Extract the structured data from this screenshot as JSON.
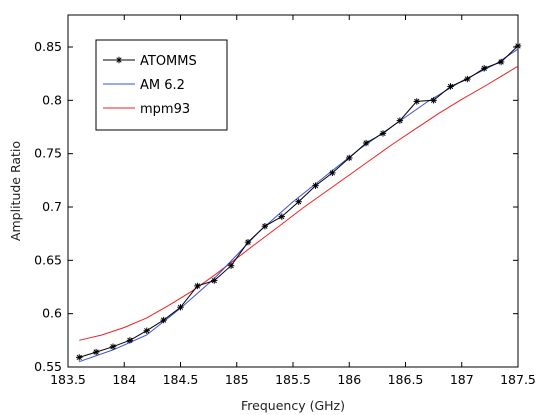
{
  "chart_data": {
    "type": "line",
    "xlabel": "Frequency (GHz)",
    "ylabel": "Amplitude Ratio",
    "xlim": [
      183.5,
      187.5
    ],
    "ylim": [
      0.55,
      0.88
    ],
    "x_ticks": [
      183.5,
      184,
      184.5,
      185,
      185.5,
      186,
      186.5,
      187,
      187.5
    ],
    "x_tick_labels": [
      "183.5",
      "184",
      "184.5",
      "185",
      "185.5",
      "186",
      "186.5",
      "187",
      "187.5"
    ],
    "y_ticks": [
      0.55,
      0.6,
      0.65,
      0.7,
      0.75,
      0.8,
      0.85
    ],
    "y_tick_labels": [
      "0.55",
      "0.6",
      "0.65",
      "0.7",
      "0.75",
      "0.8",
      "0.85"
    ],
    "grid": false,
    "legend_position": "top-left",
    "series": [
      {
        "name": "ATOMMS",
        "color": "#000000",
        "marker": "asterisk",
        "x": [
          183.6,
          183.75,
          183.9,
          184.05,
          184.2,
          184.35,
          184.5,
          184.65,
          184.8,
          184.95,
          185.1,
          185.25,
          185.4,
          185.55,
          185.7,
          185.85,
          186.0,
          186.15,
          186.3,
          186.45,
          186.6,
          186.75,
          186.9,
          187.05,
          187.2,
          187.35,
          187.5
        ],
        "y": [
          0.559,
          0.564,
          0.569,
          0.575,
          0.584,
          0.594,
          0.606,
          0.626,
          0.631,
          0.645,
          0.667,
          0.682,
          0.691,
          0.705,
          0.72,
          0.732,
          0.746,
          0.76,
          0.769,
          0.781,
          0.799,
          0.8,
          0.813,
          0.82,
          0.83,
          0.836,
          0.851
        ]
      },
      {
        "name": "AM 6.2",
        "color": "#3a4fd8",
        "x": [
          183.6,
          183.9,
          184.2,
          184.5,
          184.8,
          185.0,
          185.2,
          185.5,
          185.8,
          186.1,
          186.4,
          186.7,
          187.0,
          187.3,
          187.5
        ],
        "y": [
          0.555,
          0.566,
          0.58,
          0.605,
          0.633,
          0.655,
          0.677,
          0.705,
          0.73,
          0.755,
          0.777,
          0.799,
          0.818,
          0.834,
          0.848
        ]
      },
      {
        "name": "mpm93",
        "color": "#f02020",
        "x": [
          183.6,
          183.8,
          184.0,
          184.2,
          184.4,
          184.6,
          184.8,
          185.0,
          185.2,
          185.4,
          185.6,
          185.8,
          186.0,
          186.2,
          186.4,
          186.6,
          186.8,
          187.0,
          187.2,
          187.5
        ],
        "y": [
          0.575,
          0.58,
          0.587,
          0.596,
          0.608,
          0.621,
          0.636,
          0.652,
          0.668,
          0.684,
          0.7,
          0.715,
          0.73,
          0.745,
          0.76,
          0.774,
          0.788,
          0.801,
          0.813,
          0.832
        ]
      }
    ]
  }
}
